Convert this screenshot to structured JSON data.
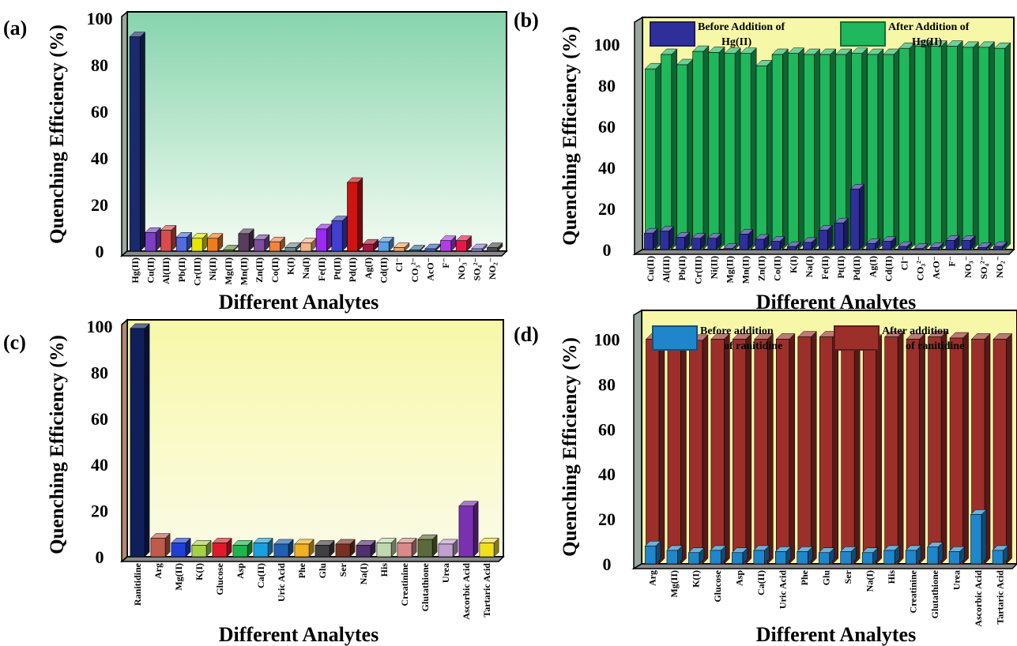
{
  "chart_data": [
    {
      "panel": "(a)",
      "type": "bar",
      "xlabel": "Different Analytes",
      "ylabel": "Quenching Efficiency (%)",
      "ylim": [
        0,
        100
      ],
      "yticks": [
        0,
        20,
        40,
        60,
        80,
        100
      ],
      "background": [
        "#86d4ad",
        "#f4fbf2"
      ],
      "categories": [
        "Hg(II)",
        "Cu(II)",
        "Al(III)",
        "Pb(II)",
        "Cr(III)",
        "Ni(II)",
        "Mg(II)",
        "Mn(II)",
        "Zn(II)",
        "Co(II)",
        "K(I)",
        "Na(I)",
        "Fe(II)",
        "Pt(II)",
        "Pd(II)",
        "Ag(I)",
        "Cd(II)",
        "Cl⁻",
        "CO₃²⁻",
        "AcO⁻",
        "F⁻",
        "NO₃⁻",
        "SO₄²⁻",
        "NO₂⁻"
      ],
      "values": [
        92,
        8,
        9,
        6,
        5.5,
        5.5,
        0.5,
        7.5,
        5,
        4,
        1.5,
        3.5,
        9.5,
        13,
        29.5,
        3,
        4,
        1.5,
        0.5,
        1,
        4.5,
        4.5,
        1,
        1.5
      ],
      "colors": [
        "#1a2a6c",
        "#7b3fc4",
        "#d94c4c",
        "#4f6de0",
        "#e6e600",
        "#f07c1a",
        "#5b8a2e",
        "#5a3c5c",
        "#7d4e9e",
        "#f0843c",
        "#6e8a8a",
        "#f7b38a",
        "#9b2bf0",
        "#3f3fd0",
        "#d01212",
        "#a8173b",
        "#5aa0e6",
        "#f4a46a",
        "#2d6ca0",
        "#3d5fbf",
        "#b23de6",
        "#e8164a",
        "#8e82d6",
        "#4b4b4b"
      ]
    },
    {
      "panel": "(b)",
      "type": "bar",
      "xlabel": "Different Analytes",
      "ylabel": "Quenching Efficiency (%)",
      "ylim": [
        0,
        110
      ],
      "yticks": [
        0,
        20,
        40,
        60,
        80,
        100
      ],
      "background": [
        "#f7f7a8",
        "#f7f7a8"
      ],
      "categories": [
        "Cu(II)",
        "Al(III)",
        "Pb(II)",
        "Cr(III)",
        "Ni(II)",
        "Mg(II)",
        "Mn(II)",
        "Zn(II)",
        "Co(II)",
        "K(I)",
        "Na(I)",
        "Fe(II)",
        "Pt(II)",
        "Pd(II)",
        "Ag(I)",
        "Cd(II)",
        "Cl⁻",
        "CO₃²⁻",
        "AcO⁻",
        "F⁻",
        "NO₃⁻",
        "SO₄²⁻",
        "NO₂⁻"
      ],
      "series": [
        {
          "name": "Before Addition of Hg(II)",
          "color": "#2f2f9c",
          "values": [
            8,
            9,
            6,
            5.5,
            5.5,
            0.5,
            7.5,
            5,
            4,
            1.5,
            3.5,
            9.5,
            13,
            29.5,
            3,
            4,
            1.5,
            0.5,
            1,
            4.5,
            4.5,
            1,
            1.5
          ]
        },
        {
          "name": "After Addition of Hg(II)",
          "color": "#1fb85c",
          "values": [
            88,
            95,
            90,
            96.5,
            96,
            95.5,
            95.5,
            89.5,
            95,
            95.5,
            95,
            95,
            95,
            95.5,
            95,
            95,
            98,
            99,
            99,
            99,
            98.5,
            98.5,
            98
          ]
        }
      ],
      "legend": [
        {
          "label_lines": [
            "Before Addition of",
            "Hg(II)"
          ]
        },
        {
          "label_lines": [
            "After Addition of",
            "Hg(II)"
          ]
        }
      ]
    },
    {
      "panel": "(c)",
      "type": "bar",
      "xlabel": "Different Analytes",
      "ylabel": "Quenching Efficiency (%)",
      "ylim": [
        0,
        100
      ],
      "yticks": [
        0,
        20,
        40,
        60,
        80,
        100
      ],
      "background": [
        "#f8f8a8",
        "#fbfbe8"
      ],
      "categories": [
        "Ranitidine",
        "Arg",
        "Mg(II)",
        "K(I)",
        "Glucose",
        "Asp",
        "Ca(II)",
        "Uric Acid",
        "Phe",
        "Glu",
        "Ser",
        "Na(I)",
        "His",
        "Creatinine",
        "Glutathione",
        "Urea",
        "Ascorbic Acid",
        "Tartaric Acid"
      ],
      "values": [
        99,
        8,
        6,
        5,
        6,
        5,
        6,
        5.5,
        5.5,
        5,
        5.5,
        5,
        6,
        6,
        7.5,
        5.5,
        22,
        6
      ],
      "colors": [
        "#0f1f5a",
        "#c15a4a",
        "#1f40d8",
        "#a6d04a",
        "#e01a2a",
        "#1ab84a",
        "#1aa0e0",
        "#1f60b0",
        "#f0b020",
        "#404040",
        "#7a3020",
        "#503070",
        "#c0d8b0",
        "#d88a8a",
        "#5a6a3a",
        "#c0a0d0",
        "#7a30b0",
        "#f0e020"
      ]
    },
    {
      "panel": "(d)",
      "type": "bar",
      "xlabel": "Different Analytes",
      "ylabel": "Quenching Efficiency (%)",
      "ylim": [
        0,
        110
      ],
      "yticks": [
        0,
        20,
        40,
        60,
        80,
        100
      ],
      "background": [
        "#f7f7a8",
        "#f7f7a8"
      ],
      "categories": [
        "Arg",
        "Mg(II)",
        "K(I)",
        "Glucose",
        "Asp",
        "Ca(II)",
        "Uric Acid",
        "Phe",
        "Glu",
        "Ser",
        "Na(I)",
        "His",
        "Creatinine",
        "Glutathione",
        "Urea",
        "Ascorbic Acid",
        "Tartaric Acid"
      ],
      "series": [
        {
          "name": "Before addition of ranitidine",
          "color": "#1f86cc",
          "values": [
            8,
            6,
            5,
            6,
            5,
            6,
            5.5,
            5.5,
            5,
            5.5,
            5,
            6,
            6,
            7.5,
            5.5,
            22,
            6
          ]
        },
        {
          "name": "After addition of ranitidine",
          "color": "#9c2f2a",
          "values": [
            100,
            100,
            99.5,
            100,
            100,
            100,
            100,
            101,
            101,
            99.5,
            99.5,
            101,
            100,
            101,
            100.5,
            100,
            100
          ]
        }
      ],
      "legend": [
        {
          "label_lines": [
            "Before addition",
            "of ranitidine"
          ]
        },
        {
          "label_lines": [
            "After addition",
            "of ranitidine"
          ]
        }
      ]
    }
  ]
}
